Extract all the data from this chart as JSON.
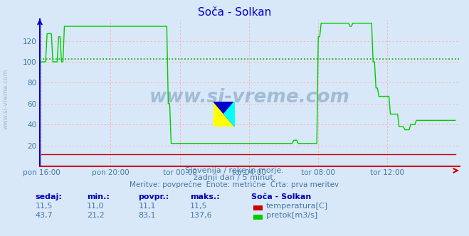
{
  "title": "Soča - Solkan",
  "bg_color": "#d8e8f8",
  "plot_bg_color": "#d8e8f8",
  "grid_color": "#ffaaaa",
  "avg_line_color": "#00aa00",
  "avg_line_value": 103,
  "flow_line_color": "#00cc00",
  "temp_line_color": "#cc0000",
  "spine_color_left": "#0000cc",
  "spine_color_bottom": "#cc0000",
  "x_tick_labels": [
    "pon 16:00",
    "pon 20:00",
    "tor 00:00",
    "tor 04:00",
    "tor 08:00",
    "tor 12:00"
  ],
  "x_tick_positions": [
    0,
    48,
    96,
    144,
    192,
    240
  ],
  "y_ticks": [
    20,
    40,
    60,
    80,
    100,
    120
  ],
  "ylim": [
    0,
    140
  ],
  "xlim": [
    -1,
    290
  ],
  "subtitle1": "Slovenija / reke in morje.",
  "subtitle2": "zadnji dan / 5 minut.",
  "subtitle3": "Meritve: povprečne  Enote: metrične  Črta: prva meritev",
  "text_color": "#4477aa",
  "watermark": "www.si-vreme.com",
  "table_headers": [
    "sedaj:",
    "min.:",
    "povpr.:",
    "maks.:"
  ],
  "table_row1": [
    "11,5",
    "11,0",
    "11,1",
    "11,5"
  ],
  "table_row2": [
    "43,7",
    "21,2",
    "83,1",
    "137,6"
  ],
  "legend_label1": "temperatura[C]",
  "legend_label2": "pretok[m3/s]",
  "legend_title": "Soča - Solkan",
  "n_points": 288
}
